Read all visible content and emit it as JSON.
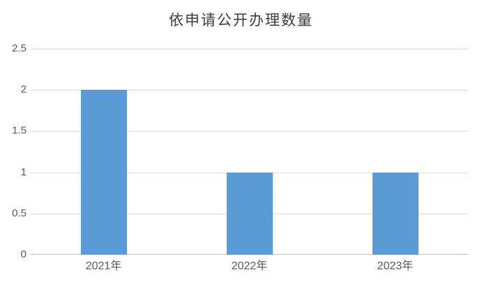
{
  "chart_data": {
    "type": "bar",
    "title": "依申请公开办理数量",
    "categories": [
      "2021年",
      "2022年",
      "2023年"
    ],
    "values": [
      2,
      1,
      1
    ],
    "yticks": [
      0,
      0.5,
      1,
      1.5,
      2,
      2.5
    ],
    "ylim": [
      0,
      2.5
    ],
    "xlabel": "",
    "ylabel": "",
    "grid": true,
    "legend": false,
    "colors": {
      "bar": "#5B9BD5",
      "gridline": "#D9D9D9",
      "axis_line": "#BFBFBF",
      "tick_label": "#595959",
      "title": "#3C3C3C",
      "background": "#FFFFFF"
    }
  }
}
